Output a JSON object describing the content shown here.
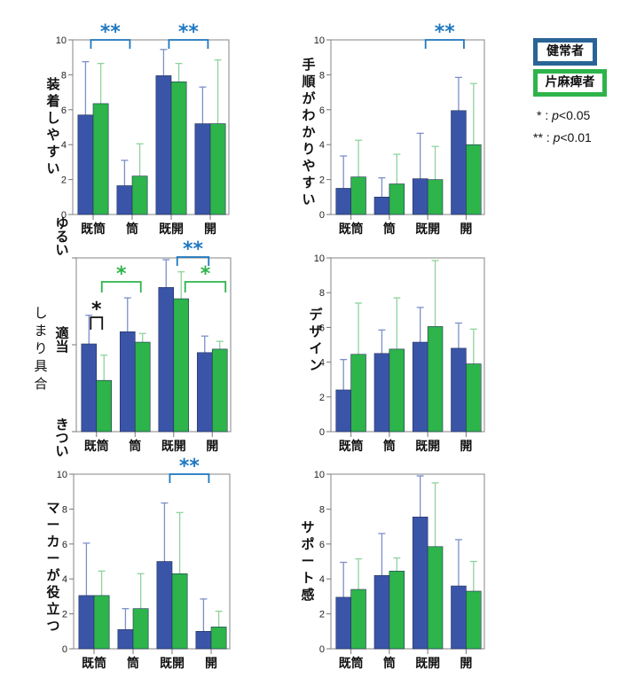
{
  "legend": {
    "healthy": {
      "label": "健常者",
      "color": "#2a6496"
    },
    "hemiplegic": {
      "label": "片麻痺者",
      "color": "#2db44a"
    },
    "p05": {
      "stars": "*",
      "sep": " : ",
      "p": "p",
      "rel": "<0.05"
    },
    "p01": {
      "stars": "**",
      "sep": " : ",
      "p": "p",
      "rel": "<0.01"
    }
  },
  "colors": {
    "healthy_bar": "#3a55a8",
    "hemiplegic_bar": "#2db44a",
    "healthy_sig": "#1f78c1",
    "hemiplegic_sig": "#2db44a",
    "black_sig": "#111111"
  },
  "chart_data": [
    {
      "id": "ease-of-wearing",
      "type": "bar",
      "ylabel": "装着しやすい",
      "categories": [
        "既筒",
        "筒",
        "既開",
        "開"
      ],
      "ylim": [
        0,
        10
      ],
      "yticks": [
        "0",
        "2",
        "4",
        "6",
        "8",
        "10"
      ],
      "series": [
        {
          "name": "健常者",
          "values": [
            5.7,
            1.65,
            7.95,
            5.2
          ],
          "error_top": [
            8.75,
            3.1,
            9.45,
            7.3
          ]
        },
        {
          "name": "片麻痺者",
          "values": [
            6.35,
            2.2,
            7.6,
            5.2
          ],
          "error_top": [
            8.65,
            4.05,
            8.65,
            8.85
          ]
        }
      ],
      "significance": [
        {
          "from": 0,
          "to": 1,
          "label": "**",
          "group": "健常者"
        },
        {
          "from": 2,
          "to": 3,
          "label": "**",
          "group": "健常者"
        }
      ]
    },
    {
      "id": "easy-to-understand-steps",
      "type": "bar",
      "ylabel": "手順がわかりやすい",
      "categories": [
        "既筒",
        "筒",
        "既開",
        "開"
      ],
      "ylim": [
        0,
        10
      ],
      "yticks": [
        "0",
        "2",
        "4",
        "6",
        "8",
        "10"
      ],
      "series": [
        {
          "name": "健常者",
          "values": [
            1.5,
            1.0,
            2.05,
            5.95
          ],
          "error_top": [
            3.35,
            2.1,
            4.65,
            7.85
          ]
        },
        {
          "name": "片麻痺者",
          "values": [
            2.15,
            1.75,
            2.0,
            4.0
          ],
          "error_top": [
            4.25,
            3.45,
            3.9,
            7.5
          ]
        }
      ],
      "significance": [
        {
          "from": 2,
          "to": 3,
          "label": "**",
          "group": "健常者"
        }
      ]
    },
    {
      "id": "tightness",
      "type": "bar",
      "ylabel": "しまり具合",
      "categories": [
        "既筒",
        "筒",
        "既開",
        "開"
      ],
      "ylim": [
        0,
        2
      ],
      "yticks_text": {
        "top": "ゆるい",
        "middle": "適当",
        "bottom": "きつい"
      },
      "series": [
        {
          "name": "健常者",
          "values": [
            1.01,
            1.15,
            1.66,
            0.91
          ],
          "error_top": [
            1.34,
            1.54,
            1.98,
            1.1
          ]
        },
        {
          "name": "片麻痺者",
          "values": [
            0.59,
            1.03,
            1.53,
            0.95
          ],
          "error_top": [
            0.88,
            1.13,
            1.84,
            1.04
          ]
        }
      ],
      "significance": [
        {
          "within": 0,
          "label": "*",
          "group": "between"
        },
        {
          "from": 0,
          "to": 1,
          "label": "*",
          "group": "片麻痺者"
        },
        {
          "from": 2,
          "to": 3,
          "label": "**",
          "group": "健常者"
        },
        {
          "from": 2,
          "to": 3,
          "label": "*",
          "group": "片麻痺者"
        }
      ]
    },
    {
      "id": "design",
      "type": "bar",
      "ylabel": "デザイン",
      "categories": [
        "既筒",
        "筒",
        "既開",
        "開"
      ],
      "ylim": [
        0,
        10
      ],
      "yticks": [
        "0",
        "2",
        "4",
        "6",
        "8",
        "10"
      ],
      "series": [
        {
          "name": "健常者",
          "values": [
            2.4,
            4.5,
            5.15,
            4.8
          ],
          "error_top": [
            4.15,
            5.85,
            7.15,
            6.25
          ]
        },
        {
          "name": "片麻痺者",
          "values": [
            4.45,
            4.75,
            6.05,
            3.9
          ],
          "error_top": [
            7.4,
            7.7,
            9.85,
            5.9
          ]
        }
      ],
      "significance": []
    },
    {
      "id": "marker-useful",
      "type": "bar",
      "ylabel": "マーカーが役立つ",
      "categories": [
        "既筒",
        "筒",
        "既開",
        "開"
      ],
      "ylim": [
        0,
        10
      ],
      "yticks": [
        "0",
        "2",
        "4",
        "6",
        "8",
        "10"
      ],
      "series": [
        {
          "name": "健常者",
          "values": [
            3.05,
            1.1,
            5.0,
            1.0
          ],
          "error_top": [
            6.05,
            2.3,
            8.35,
            2.85
          ]
        },
        {
          "name": "片麻痺者",
          "values": [
            3.05,
            2.3,
            4.3,
            1.25
          ],
          "error_top": [
            4.45,
            4.3,
            7.8,
            2.15
          ]
        }
      ],
      "significance": [
        {
          "from": 2,
          "to": 3,
          "label": "**",
          "group": "健常者"
        }
      ]
    },
    {
      "id": "sense-of-support",
      "type": "bar",
      "ylabel": "サポート感",
      "categories": [
        "既筒",
        "筒",
        "既開",
        "開"
      ],
      "ylim": [
        0,
        10
      ],
      "yticks": [
        "0",
        "2",
        "4",
        "6",
        "8",
        "10"
      ],
      "series": [
        {
          "name": "健常者",
          "values": [
            2.95,
            4.2,
            7.55,
            3.6
          ],
          "error_top": [
            4.95,
            6.6,
            9.9,
            6.25
          ]
        },
        {
          "name": "片麻痺者",
          "values": [
            3.4,
            4.45,
            5.85,
            3.3
          ],
          "error_top": [
            5.15,
            5.2,
            9.5,
            5.0
          ]
        }
      ],
      "significance": []
    }
  ]
}
